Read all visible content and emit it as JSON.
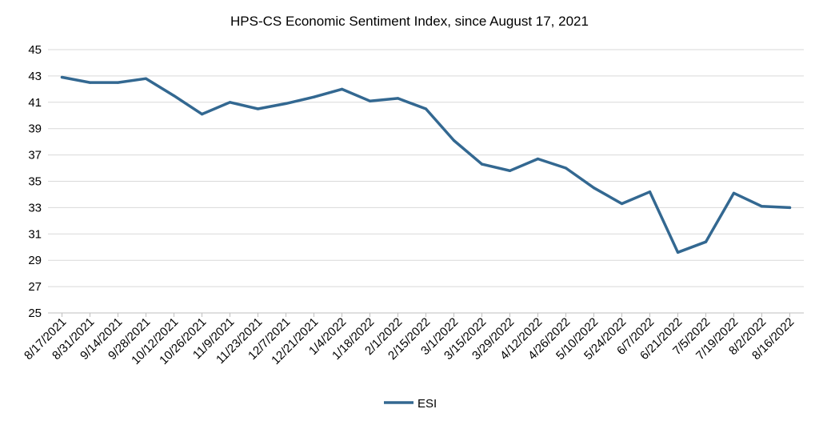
{
  "chart_data": {
    "type": "line",
    "title": "HPS-CS Economic Sentiment Index, since August 17, 2021",
    "xlabel": "",
    "ylabel": "",
    "ylim": [
      25,
      45
    ],
    "yticks": [
      "25",
      "27",
      "29",
      "31",
      "33",
      "35",
      "37",
      "39",
      "41",
      "43",
      "45"
    ],
    "grid": true,
    "legend_position": "bottom",
    "categories": [
      "8/17/2021",
      "8/31/2021",
      "9/14/2021",
      "9/28/2021",
      "10/12/2021",
      "10/26/2021",
      "11/9/2021",
      "11/23/2021",
      "12/7/2021",
      "12/21/2021",
      "1/4/2022",
      "1/18/2022",
      "2/1/2022",
      "2/15/2022",
      "3/1/2022",
      "3/15/2022",
      "3/29/2022",
      "4/12/2022",
      "4/26/2022",
      "5/10/2022",
      "5/24/2022",
      "6/7/2022",
      "6/21/2022",
      "7/5/2022",
      "7/19/2022",
      "8/2/2022",
      "8/16/2022"
    ],
    "series": [
      {
        "name": "ESI",
        "color": "#336891",
        "values": [
          42.9,
          42.5,
          42.5,
          42.8,
          41.5,
          40.1,
          41.0,
          40.5,
          40.9,
          41.4,
          42.0,
          41.1,
          41.3,
          40.5,
          38.1,
          36.3,
          35.8,
          36.7,
          36.0,
          34.5,
          33.3,
          34.2,
          29.6,
          30.4,
          34.1,
          33.1,
          33.0
        ]
      }
    ]
  }
}
